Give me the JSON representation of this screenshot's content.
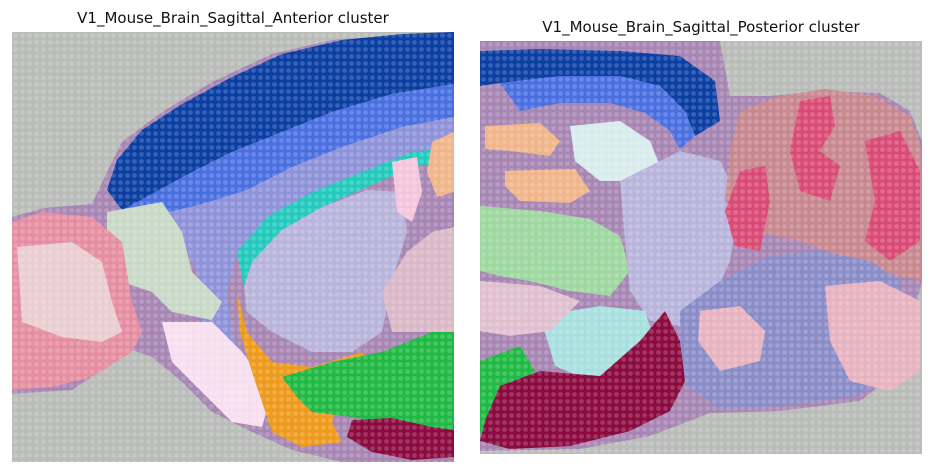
{
  "panels": [
    {
      "title": "V1_Mouse_Brain_Sagittal_Anterior cluster",
      "image_description_icon": "tissue-spatial-cluster-overlay"
    },
    {
      "title": "V1_Mouse_Brain_Sagittal_Posterior cluster",
      "image_description_icon": "tissue-spatial-cluster-overlay"
    }
  ],
  "colors": {
    "background_slide": "#b9bcb8",
    "tissue_purple": "#a786b4",
    "dark_blue": "#0b3fa3",
    "royal_blue": "#4a6fe0",
    "periwinkle": "#8e93d9",
    "lavender": "#b8b4dc",
    "teal": "#24c9be",
    "pink_light": "#f4c6dd",
    "salmon": "#e58ea2",
    "rose": "#e9cdcf",
    "sage": "#c9d9c7",
    "orange": "#ee9a1c",
    "green": "#20b944",
    "maroon": "#8b0a3f",
    "peach": "#f0b58a",
    "mint": "#9fd7a0",
    "aqua_light": "#a8dfdf",
    "mauve": "#c8888f",
    "crimson": "#d94b76",
    "blush": "#e7b3c0",
    "slate": "#8a8cc8"
  }
}
